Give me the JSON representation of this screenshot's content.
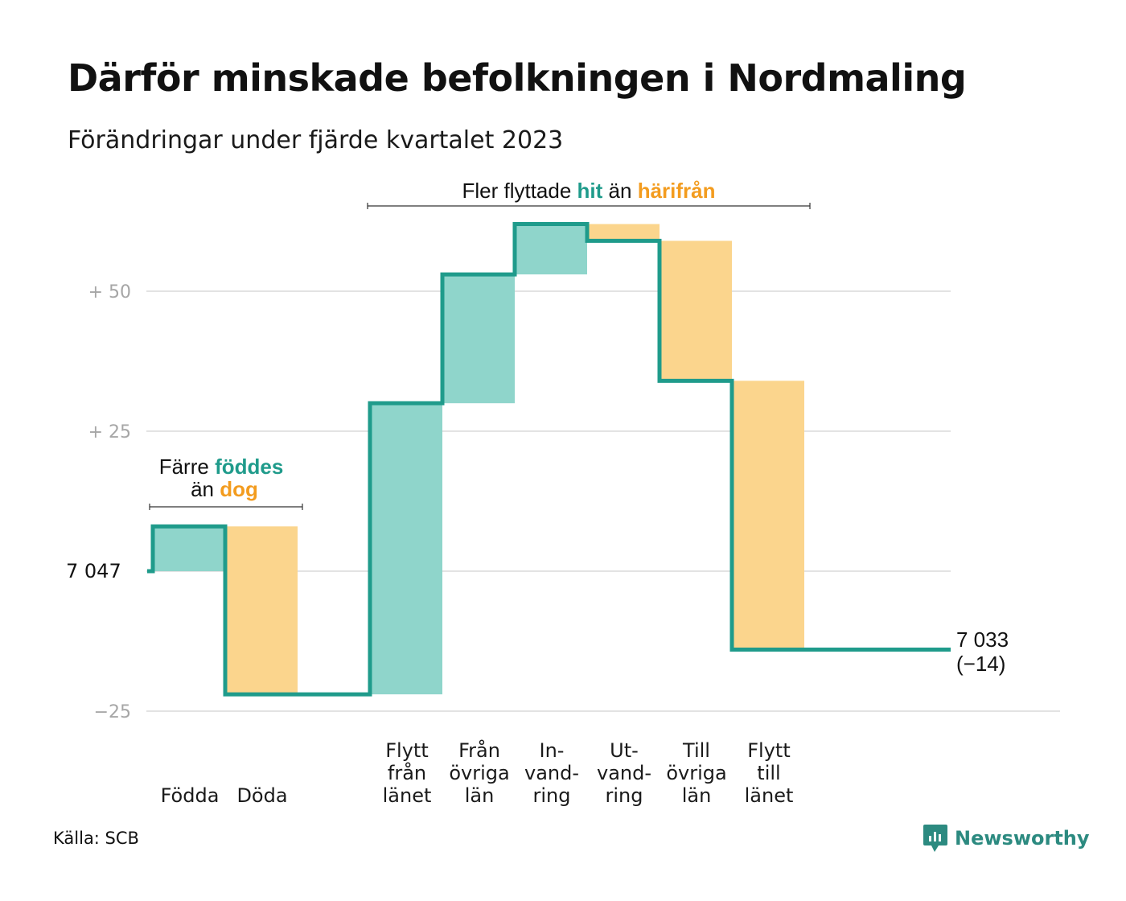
{
  "title": "Därför minskade befolkningen i Nordmaling",
  "subtitle": "Förändringar under fjärde kvartalet 2023",
  "source": "Källa: SCB",
  "brand": "Newsworthy",
  "brand_icon": "newsworthy-logo-icon",
  "colors": {
    "increase_fill": "#8fd5cb",
    "decrease_fill": "#fbd58d",
    "line": "#1f9b8b",
    "grid": "#e3e3e3",
    "accent_green": "#1f9b8b",
    "accent_orange": "#f39c1f"
  },
  "annotations": {
    "births_vs_deaths": {
      "line1_prefix": "Färre",
      "line1_highlight": "föddes",
      "line2_prefix": "än",
      "line2_highlight": "dog"
    },
    "migration": {
      "prefix": "Fler flyttade",
      "highlight1": "hit",
      "middle": "än",
      "highlight2": "härifrån"
    }
  },
  "chart_data": {
    "type": "waterfall",
    "title": "Därför minskade befolkningen i Nordmaling",
    "subtitle": "Förändringar under fjärde kvartalet 2023",
    "base_value": 7047,
    "base_label": "7 047",
    "end_value": 7033,
    "end_label_line1": "7 033",
    "end_label_line2": "(−14)",
    "ylim": [
      -25,
      60
    ],
    "y_ticks": [
      {
        "value": 50,
        "label": "+  50"
      },
      {
        "value": 25,
        "label": "+  25"
      },
      {
        "value": 0,
        "label": ""
      },
      {
        "value": -25,
        "label": "−25"
      }
    ],
    "categories": [
      {
        "label": [
          "Födda"
        ],
        "value": 8,
        "type": "increase"
      },
      {
        "label": [
          "Döda"
        ],
        "value": -30,
        "type": "decrease"
      },
      {
        "label": [],
        "value": 0,
        "type": "spacer"
      },
      {
        "label": [
          "Flytt",
          "från",
          "länet"
        ],
        "value": 52,
        "type": "increase"
      },
      {
        "label": [
          "Från",
          "övriga",
          "län"
        ],
        "value": 23,
        "type": "increase"
      },
      {
        "label": [
          "In-",
          "vand-",
          "ring"
        ],
        "value": 9,
        "type": "increase"
      },
      {
        "label": [
          "Ut-",
          "vand-",
          "ring"
        ],
        "value": -3,
        "type": "decrease"
      },
      {
        "label": [
          "Till",
          "övriga",
          "län"
        ],
        "value": -25,
        "type": "decrease"
      },
      {
        "label": [
          "Flytt",
          "till",
          "länet"
        ],
        "value": -48,
        "type": "decrease"
      }
    ]
  }
}
